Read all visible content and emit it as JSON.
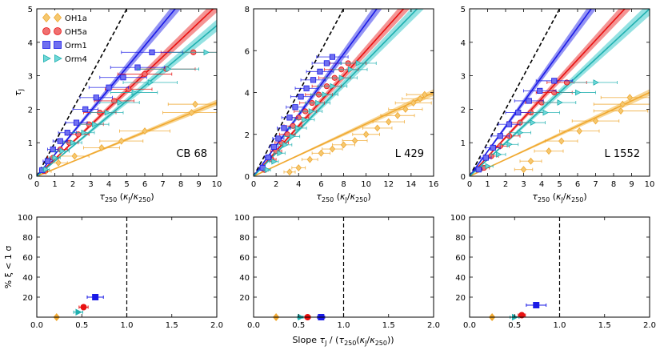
{
  "chart_data": [
    {
      "type": "scatter",
      "panel": "top",
      "source": "CB 68",
      "xlim": [
        0,
        10
      ],
      "ylim": [
        0,
        5
      ],
      "xticks": [
        "0",
        "1",
        "2",
        "3",
        "4",
        "5",
        "6",
        "7",
        "8",
        "9",
        "10"
      ],
      "yticks": [
        "0",
        "1",
        "2",
        "3",
        "4",
        "5"
      ],
      "xlabel": "τ250 (κJ/κ250)",
      "ylabel": "τJ",
      "reference_slope": 1.0,
      "series": [
        {
          "name": "OH1a",
          "color": "#f0a830",
          "fill_color": "#f5c870",
          "marker": "diamond",
          "slope": 0.22,
          "points": [
            [
              0.5,
              0.15,
              0.3
            ],
            [
              1.2,
              0.4,
              0.5
            ],
            [
              2.1,
              0.6,
              0.8
            ],
            [
              3.6,
              0.85,
              1.0
            ],
            [
              4.7,
              1.05,
              1.2
            ],
            [
              6.0,
              1.35,
              1.4
            ],
            [
              8.6,
              1.9,
              1.6
            ],
            [
              8.8,
              2.15,
              1.5
            ]
          ]
        },
        {
          "name": "OH5a",
          "color": "#e81010",
          "fill_color": "#f07070",
          "marker": "circle",
          "slope": 0.51,
          "points": [
            [
              0.4,
              0.15,
              0.2
            ],
            [
              0.9,
              0.55,
              0.3
            ],
            [
              1.3,
              0.8,
              0.4
            ],
            [
              1.8,
              1.0,
              0.5
            ],
            [
              2.3,
              1.25,
              0.6
            ],
            [
              2.9,
              1.55,
              0.8
            ],
            [
              3.5,
              1.9,
              0.9
            ],
            [
              4.3,
              2.25,
              1.1
            ],
            [
              5.1,
              2.6,
              1.3
            ],
            [
              6.0,
              3.05,
              1.5
            ],
            [
              7.2,
              3.2,
              1.6
            ],
            [
              8.7,
              3.7,
              1.8
            ]
          ]
        },
        {
          "name": "Orm1",
          "color": "#1a1ae6",
          "fill_color": "#7070f0",
          "marker": "square",
          "slope": 0.65,
          "points": [
            [
              0.3,
              0.18,
              0.15
            ],
            [
              0.6,
              0.45,
              0.25
            ],
            [
              0.9,
              0.8,
              0.3
            ],
            [
              1.3,
              1.05,
              0.4
            ],
            [
              1.7,
              1.3,
              0.5
            ],
            [
              2.2,
              1.6,
              0.6
            ],
            [
              2.7,
              2.0,
              0.7
            ],
            [
              3.3,
              2.35,
              0.9
            ],
            [
              4.0,
              2.65,
              1.1
            ],
            [
              4.8,
              2.95,
              1.3
            ],
            [
              5.6,
              3.25,
              1.5
            ],
            [
              6.4,
              3.7,
              1.7
            ]
          ]
        },
        {
          "name": "Orm4",
          "color": "#20b0b0",
          "fill_color": "#70d8d8",
          "marker": "triangle-right",
          "slope": 0.45,
          "points": [
            [
              0.5,
              0.2,
              0.2
            ],
            [
              1.0,
              0.55,
              0.3
            ],
            [
              1.4,
              0.75,
              0.4
            ],
            [
              2.0,
              1.0,
              0.5
            ],
            [
              2.6,
              1.3,
              0.6
            ],
            [
              3.2,
              1.55,
              0.8
            ],
            [
              3.9,
              1.9,
              0.9
            ],
            [
              4.6,
              2.2,
              1.1
            ],
            [
              5.4,
              2.5,
              1.3
            ],
            [
              6.3,
              2.8,
              1.5
            ],
            [
              7.3,
              3.2,
              1.7
            ],
            [
              9.4,
              3.7,
              2.0
            ]
          ]
        }
      ]
    },
    {
      "type": "scatter",
      "panel": "top",
      "source": "L 429",
      "xlim": [
        0,
        16
      ],
      "ylim": [
        0,
        8
      ],
      "xticks": [
        "0",
        "2",
        "4",
        "6",
        "8",
        "10",
        "12",
        "14",
        "16"
      ],
      "yticks": [
        "0",
        "2",
        "4",
        "6",
        "8"
      ],
      "xlabel": "τ250 (κJ/κ250)",
      "ylabel": "",
      "reference_slope": 1.0,
      "series": [
        {
          "name": "OH1a",
          "color": "#f0a830",
          "fill_color": "#f5c870",
          "marker": "diamond",
          "slope": 0.25,
          "points": [
            [
              3.2,
              0.2,
              0.5
            ],
            [
              4.0,
              0.4,
              0.6
            ],
            [
              5.0,
              0.8,
              0.7
            ],
            [
              6.0,
              1.1,
              0.8
            ],
            [
              7.0,
              1.3,
              0.9
            ],
            [
              8.0,
              1.5,
              1.0
            ],
            [
              9.0,
              1.7,
              1.1
            ],
            [
              10.0,
              2.0,
              1.2
            ],
            [
              11.0,
              2.3,
              1.3
            ],
            [
              12.0,
              2.6,
              1.4
            ],
            [
              12.8,
              2.9,
              1.5
            ],
            [
              13.5,
              3.2,
              1.5
            ],
            [
              14.2,
              3.5,
              1.6
            ],
            [
              14.8,
              3.7,
              1.6
            ],
            [
              15.2,
              3.9,
              1.6
            ]
          ]
        },
        {
          "name": "OH5a",
          "color": "#e81010",
          "fill_color": "#f07070",
          "marker": "circle",
          "slope": 0.6,
          "points": [
            [
              1.0,
              0.3,
              0.3
            ],
            [
              1.6,
              0.8,
              0.4
            ],
            [
              2.0,
              1.2,
              0.5
            ],
            [
              2.5,
              1.6,
              0.6
            ],
            [
              3.0,
              2.0,
              0.7
            ],
            [
              3.5,
              2.4,
              0.8
            ],
            [
              4.0,
              2.8,
              0.9
            ],
            [
              4.6,
              3.1,
              1.0
            ],
            [
              5.2,
              3.5,
              1.1
            ],
            [
              5.8,
              3.9,
              1.2
            ],
            [
              6.5,
              4.3,
              1.3
            ],
            [
              7.2,
              4.7,
              1.4
            ],
            [
              7.8,
              5.1,
              1.5
            ],
            [
              8.4,
              5.4,
              1.6
            ]
          ]
        },
        {
          "name": "Orm1",
          "color": "#1a1ae6",
          "fill_color": "#7070f0",
          "marker": "square",
          "slope": 0.73,
          "points": [
            [
              0.8,
              0.4,
              0.2
            ],
            [
              1.3,
              0.9,
              0.3
            ],
            [
              1.8,
              1.4,
              0.4
            ],
            [
              2.2,
              1.8,
              0.5
            ],
            [
              2.7,
              2.3,
              0.6
            ],
            [
              3.2,
              2.8,
              0.7
            ],
            [
              3.7,
              3.3,
              0.8
            ],
            [
              4.2,
              3.8,
              0.9
            ],
            [
              4.7,
              4.2,
              1.0
            ],
            [
              5.3,
              4.6,
              1.1
            ],
            [
              5.9,
              5.0,
              1.2
            ],
            [
              6.5,
              5.4,
              1.3
            ],
            [
              7.0,
              5.7,
              1.4
            ]
          ]
        },
        {
          "name": "Orm4",
          "color": "#20b0b0",
          "fill_color": "#70d8d8",
          "marker": "triangle-right",
          "slope": 0.55,
          "points": [
            [
              1.2,
              0.3,
              0.3
            ],
            [
              1.8,
              0.7,
              0.4
            ],
            [
              2.3,
              1.1,
              0.5
            ],
            [
              2.8,
              1.5,
              0.6
            ],
            [
              3.4,
              1.9,
              0.7
            ],
            [
              3.9,
              2.3,
              0.8
            ],
            [
              4.5,
              2.7,
              0.9
            ],
            [
              5.1,
              3.1,
              1.0
            ],
            [
              5.7,
              3.5,
              1.1
            ],
            [
              6.3,
              3.9,
              1.2
            ],
            [
              7.0,
              4.3,
              1.3
            ],
            [
              7.8,
              4.7,
              1.4
            ],
            [
              8.6,
              5.1,
              1.5
            ],
            [
              9.3,
              5.4,
              1.6
            ]
          ]
        }
      ]
    },
    {
      "type": "scatter",
      "panel": "top",
      "source": "L 1552",
      "xlim": [
        0,
        10
      ],
      "ylim": [
        0,
        5
      ],
      "xticks": [
        "0",
        "1",
        "2",
        "3",
        "4",
        "5",
        "6",
        "7",
        "8",
        "9",
        "10"
      ],
      "yticks": [
        "0",
        "1",
        "2",
        "3",
        "4",
        "5"
      ],
      "xlabel": "τ250 (κJ/κ250)",
      "ylabel": "",
      "reference_slope": 1.0,
      "series": [
        {
          "name": "OH1a",
          "color": "#f0a830",
          "fill_color": "#f5c870",
          "marker": "diamond",
          "slope": 0.25,
          "points": [
            [
              3.0,
              0.2,
              0.5
            ],
            [
              3.4,
              0.45,
              0.6
            ],
            [
              4.4,
              0.75,
              0.8
            ],
            [
              5.1,
              1.05,
              0.9
            ],
            [
              6.1,
              1.35,
              1.1
            ],
            [
              7.0,
              1.65,
              1.3
            ],
            [
              8.4,
              1.95,
              1.5
            ],
            [
              8.5,
              2.15,
              1.6
            ],
            [
              8.9,
              2.35,
              1.6
            ]
          ]
        },
        {
          "name": "OH5a",
          "color": "#e81010",
          "fill_color": "#f07070",
          "marker": "circle",
          "slope": 0.58,
          "points": [
            [
              0.8,
              0.25,
              0.3
            ],
            [
              1.2,
              0.6,
              0.4
            ],
            [
              1.7,
              0.9,
              0.5
            ],
            [
              2.2,
              1.2,
              0.6
            ],
            [
              2.8,
              1.6,
              0.7
            ],
            [
              3.4,
              1.9,
              0.8
            ],
            [
              4.0,
              2.2,
              0.9
            ],
            [
              4.7,
              2.5,
              1.0
            ],
            [
              5.4,
              2.8,
              1.1
            ]
          ]
        },
        {
          "name": "Orm1",
          "color": "#1a1ae6",
          "fill_color": "#7070f0",
          "marker": "square",
          "slope": 0.74,
          "points": [
            [
              0.5,
              0.2,
              0.2
            ],
            [
              0.9,
              0.55,
              0.3
            ],
            [
              1.3,
              0.85,
              0.4
            ],
            [
              1.7,
              1.2,
              0.5
            ],
            [
              2.2,
              1.55,
              0.6
            ],
            [
              2.7,
              1.9,
              0.7
            ],
            [
              3.3,
              2.25,
              0.8
            ],
            [
              3.9,
              2.55,
              0.9
            ],
            [
              4.7,
              2.85,
              1.0
            ]
          ]
        },
        {
          "name": "Orm4",
          "color": "#20b0b0",
          "fill_color": "#70d8d8",
          "marker": "triangle-right",
          "slope": 0.5,
          "points": [
            [
              1.0,
              0.3,
              0.3
            ],
            [
              1.6,
              0.65,
              0.4
            ],
            [
              2.2,
              0.95,
              0.5
            ],
            [
              2.8,
              1.3,
              0.6
            ],
            [
              3.5,
              1.6,
              0.7
            ],
            [
              4.2,
              1.9,
              0.8
            ],
            [
              5.0,
              2.2,
              0.9
            ],
            [
              6.0,
              2.5,
              1.0
            ],
            [
              7.0,
              2.8,
              1.2
            ]
          ]
        }
      ]
    },
    {
      "type": "scatter",
      "panel": "bottom",
      "source": "CB 68",
      "xlim": [
        0,
        2
      ],
      "ylim": [
        0,
        100
      ],
      "xticks": [
        "0.0",
        "0.5",
        "1.0",
        "1.5",
        "2.0"
      ],
      "yticks": [
        "20",
        "40",
        "60",
        "80",
        "100"
      ],
      "ylabel": "% ξ < 1 σ",
      "vline": 1.0,
      "points": [
        {
          "name": "OH1a",
          "color": "#f0a830",
          "marker": "diamond",
          "x": 0.22,
          "y": 0,
          "xerr": 0.02
        },
        {
          "name": "Orm4",
          "color": "#20b0b0",
          "marker": "triangle-right",
          "x": 0.46,
          "y": 5,
          "xerr": 0.05
        },
        {
          "name": "OH5a",
          "color": "#e81010",
          "marker": "circle",
          "x": 0.52,
          "y": 10,
          "xerr": 0.05
        },
        {
          "name": "Orm1",
          "color": "#1a1ae6",
          "marker": "square",
          "x": 0.65,
          "y": 20,
          "xerr": 0.09
        }
      ]
    },
    {
      "type": "scatter",
      "panel": "bottom",
      "source": "L 429",
      "xlim": [
        0,
        2
      ],
      "ylim": [
        0,
        100
      ],
      "xticks": [
        "0.0",
        "0.5",
        "1.0",
        "1.5",
        "2.0"
      ],
      "yticks": [
        "20",
        "40",
        "60",
        "80",
        "100"
      ],
      "ylabel": "",
      "vline": 1.0,
      "points": [
        {
          "name": "OH1a",
          "color": "#f0a830",
          "marker": "diamond",
          "x": 0.25,
          "y": 0,
          "xerr": 0.02
        },
        {
          "name": "Orm4",
          "color": "#20b0b0",
          "marker": "triangle-right",
          "x": 0.52,
          "y": 0,
          "xerr": 0.03
        },
        {
          "name": "OH5a",
          "color": "#e81010",
          "marker": "circle",
          "x": 0.6,
          "y": 0,
          "xerr": 0.03
        },
        {
          "name": "Orm1",
          "color": "#1a1ae6",
          "marker": "square",
          "x": 0.75,
          "y": 0,
          "xerr": 0.04
        }
      ]
    },
    {
      "type": "scatter",
      "panel": "bottom",
      "source": "L 1552",
      "xlim": [
        0,
        2
      ],
      "ylim": [
        0,
        100
      ],
      "xticks": [
        "0.0",
        "0.5",
        "1.0",
        "1.5",
        "2.0"
      ],
      "yticks": [
        "20",
        "40",
        "60",
        "80",
        "100"
      ],
      "ylabel": "",
      "vline": 1.0,
      "points": [
        {
          "name": "OH1a",
          "color": "#f0a830",
          "marker": "diamond",
          "x": 0.25,
          "y": 0,
          "xerr": 0.02
        },
        {
          "name": "Orm4",
          "color": "#20b0b0",
          "marker": "triangle-right",
          "x": 0.5,
          "y": 0,
          "xerr": 0.05
        },
        {
          "name": "OH5a",
          "color": "#e81010",
          "marker": "circle",
          "x": 0.58,
          "y": 2,
          "xerr": 0.04
        },
        {
          "name": "Orm1",
          "color": "#1a1ae6",
          "marker": "square",
          "x": 0.74,
          "y": 12,
          "xerr": 0.11
        }
      ]
    }
  ],
  "legend": [
    {
      "name": "OH1a",
      "color": "#f0a830",
      "fill_color": "#f5c870",
      "marker": "diamond"
    },
    {
      "name": "OH5a",
      "color": "#e81010",
      "fill_color": "#f07070",
      "marker": "circle"
    },
    {
      "name": "Orm1",
      "color": "#1a1ae6",
      "fill_color": "#7070f0",
      "marker": "square"
    },
    {
      "name": "Orm4",
      "color": "#20b0b0",
      "fill_color": "#70d8d8",
      "marker": "triangle-right"
    }
  ],
  "bottom_xlabel": "Slope τJ / (τ250(κJ/κ250))"
}
